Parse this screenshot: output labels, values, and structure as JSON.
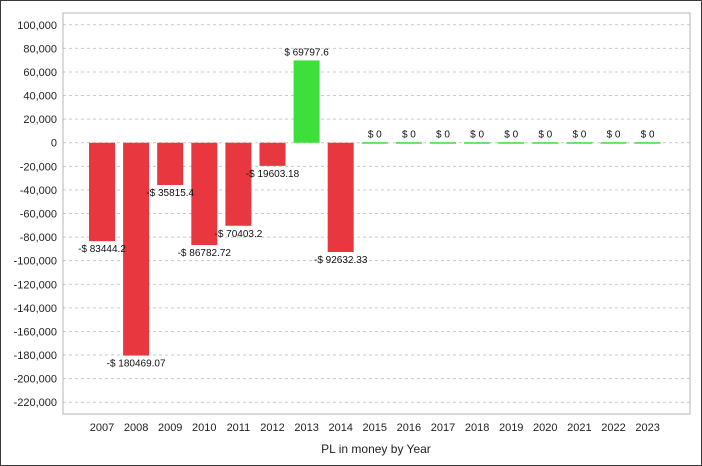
{
  "chart_data": {
    "type": "bar",
    "title": "",
    "xlabel": "PL in money by Year",
    "ylabel": "",
    "categories": [
      "2007",
      "2008",
      "2009",
      "2010",
      "2011",
      "2012",
      "2013",
      "2014",
      "2015",
      "2016",
      "2017",
      "2018",
      "2019",
      "2020",
      "2021",
      "2022",
      "2023"
    ],
    "values": [
      -83444.2,
      -180469.07,
      -35815.4,
      -86782.72,
      -70403.2,
      -19603.18,
      69797.6,
      -92632.33,
      0,
      0,
      0,
      0,
      0,
      0,
      0,
      0,
      0
    ],
    "data_labels": [
      "-$ 83444.2",
      "-$ 180469.07",
      "-$ 35815.4",
      "-$ 86782.72",
      "-$ 70403.2",
      "-$ 19603.18",
      "$ 69797.6",
      "-$ 92632.33",
      "$ 0",
      "$ 0",
      "$ 0",
      "$ 0",
      "$ 0",
      "$ 0",
      "$ 0",
      "$ 0",
      "$ 0"
    ],
    "ylim": [
      -230000,
      110000
    ],
    "yticks": [
      100000,
      80000,
      60000,
      40000,
      20000,
      0,
      -20000,
      -40000,
      -60000,
      -80000,
      -100000,
      -120000,
      -140000,
      -160000,
      -180000,
      -200000,
      -220000
    ],
    "ytick_labels": [
      "100,000",
      "80,000",
      "60,000",
      "40,000",
      "20,000",
      "0",
      "-20,000",
      "-40,000",
      "-60,000",
      "-80,000",
      "-100,000",
      "-120,000",
      "-140,000",
      "-160,000",
      "-180,000",
      "-200,000",
      "-220,000"
    ],
    "grid": true,
    "colors": {
      "positive": "#3de03a",
      "negative": "#e8373f",
      "zero": "#3de03a"
    }
  }
}
